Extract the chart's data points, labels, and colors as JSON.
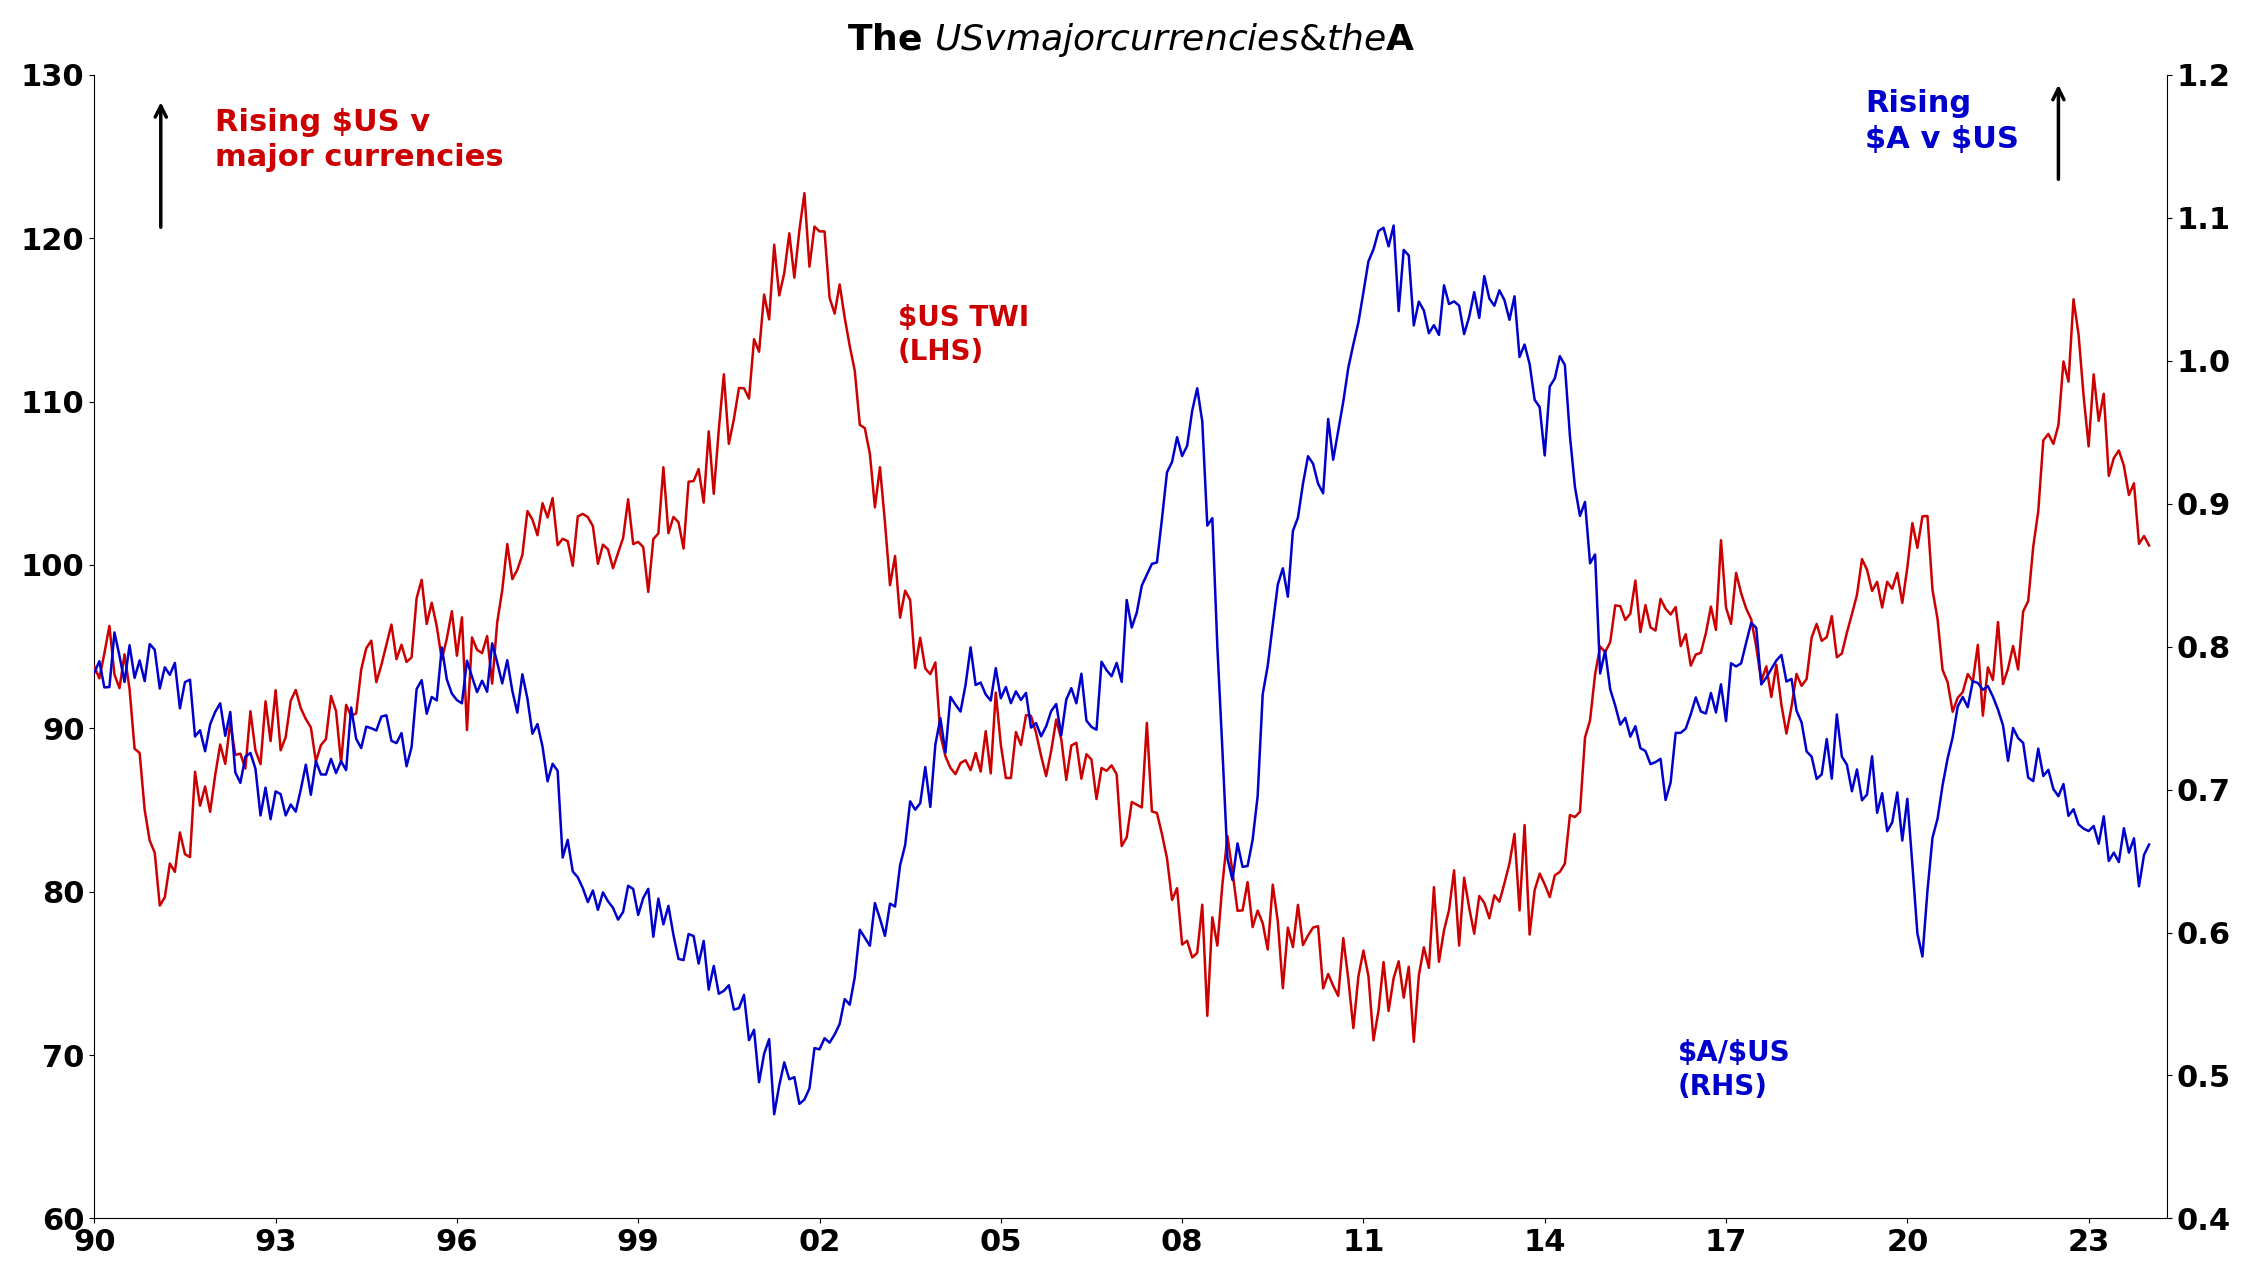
{
  "title": "The $US v major currencies & the $A",
  "title_fontsize": 26,
  "lhs_ylim": [
    60,
    130
  ],
  "rhs_ylim": [
    0.4,
    1.2
  ],
  "lhs_yticks": [
    60,
    70,
    80,
    90,
    100,
    110,
    120,
    130
  ],
  "rhs_yticks": [
    0.4,
    0.5,
    0.6,
    0.7,
    0.8,
    0.9,
    1.0,
    1.1,
    1.2
  ],
  "xticks": [
    1990,
    1993,
    1996,
    1999,
    2002,
    2005,
    2008,
    2011,
    2014,
    2017,
    2020,
    2023
  ],
  "xticklabels": [
    "90",
    "93",
    "96",
    "99",
    "02",
    "05",
    "08",
    "11",
    "14",
    "17",
    "20",
    "23"
  ],
  "twi_color": "#cc0000",
  "aud_color": "#0000cc",
  "arrow_color": "#000000",
  "tick_fontsize": 22,
  "annotation_fontsize": 22,
  "label_fontsize": 20,
  "linewidth": 1.8,
  "background_color": "#ffffff",
  "twi_control_points": [
    [
      1990.0,
      93
    ],
    [
      1990.3,
      94
    ],
    [
      1990.6,
      91
    ],
    [
      1991.0,
      82
    ],
    [
      1991.4,
      83
    ],
    [
      1991.8,
      86
    ],
    [
      1992.2,
      90
    ],
    [
      1992.6,
      88
    ],
    [
      1993.0,
      92
    ],
    [
      1993.4,
      91
    ],
    [
      1993.8,
      90
    ],
    [
      1994.2,
      91
    ],
    [
      1994.6,
      94
    ],
    [
      1995.0,
      95
    ],
    [
      1995.4,
      97
    ],
    [
      1995.8,
      95
    ],
    [
      1996.2,
      94
    ],
    [
      1996.6,
      96
    ],
    [
      1997.0,
      101
    ],
    [
      1997.4,
      103
    ],
    [
      1997.8,
      102
    ],
    [
      1998.2,
      103
    ],
    [
      1998.6,
      101
    ],
    [
      1999.0,
      101
    ],
    [
      1999.4,
      102
    ],
    [
      1999.8,
      103
    ],
    [
      2000.3,
      107
    ],
    [
      2000.7,
      111
    ],
    [
      2001.1,
      116
    ],
    [
      2001.5,
      119
    ],
    [
      2001.8,
      121
    ],
    [
      2002.0,
      120
    ],
    [
      2002.3,
      117
    ],
    [
      2002.6,
      111
    ],
    [
      2003.0,
      103
    ],
    [
      2003.5,
      96
    ],
    [
      2004.0,
      90
    ],
    [
      2004.5,
      87
    ],
    [
      2005.0,
      88
    ],
    [
      2005.5,
      90
    ],
    [
      2006.0,
      89
    ],
    [
      2006.5,
      88
    ],
    [
      2007.0,
      85
    ],
    [
      2007.5,
      84
    ],
    [
      2008.0,
      78
    ],
    [
      2008.4,
      75
    ],
    [
      2008.7,
      82
    ],
    [
      2009.0,
      80
    ],
    [
      2009.5,
      77
    ],
    [
      2010.0,
      78
    ],
    [
      2010.5,
      75
    ],
    [
      2011.0,
      73
    ],
    [
      2011.5,
      74
    ],
    [
      2012.0,
      77
    ],
    [
      2012.5,
      79
    ],
    [
      2013.0,
      79
    ],
    [
      2013.5,
      81
    ],
    [
      2014.0,
      80
    ],
    [
      2014.5,
      84
    ],
    [
      2015.0,
      96
    ],
    [
      2015.5,
      97
    ],
    [
      2016.0,
      96
    ],
    [
      2016.5,
      94
    ],
    [
      2017.0,
      99
    ],
    [
      2017.5,
      95
    ],
    [
      2018.0,
      91
    ],
    [
      2018.5,
      96
    ],
    [
      2019.0,
      97
    ],
    [
      2019.5,
      99
    ],
    [
      2020.0,
      99
    ],
    [
      2020.3,
      103
    ],
    [
      2020.6,
      93
    ],
    [
      2021.0,
      91
    ],
    [
      2021.5,
      93
    ],
    [
      2022.0,
      99
    ],
    [
      2022.4,
      108
    ],
    [
      2022.7,
      114
    ],
    [
      2023.0,
      110
    ],
    [
      2023.5,
      107
    ],
    [
      2024.0,
      101
    ]
  ],
  "aud_control_points": [
    [
      1990.0,
      0.775
    ],
    [
      1990.3,
      0.795
    ],
    [
      1990.7,
      0.775
    ],
    [
      1991.0,
      0.775
    ],
    [
      1991.4,
      0.77
    ],
    [
      1991.8,
      0.755
    ],
    [
      1992.2,
      0.735
    ],
    [
      1992.6,
      0.72
    ],
    [
      1993.0,
      0.69
    ],
    [
      1993.4,
      0.7
    ],
    [
      1993.8,
      0.72
    ],
    [
      1994.2,
      0.73
    ],
    [
      1994.6,
      0.745
    ],
    [
      1995.0,
      0.74
    ],
    [
      1995.4,
      0.755
    ],
    [
      1995.8,
      0.76
    ],
    [
      1996.2,
      0.79
    ],
    [
      1996.6,
      0.78
    ],
    [
      1997.0,
      0.765
    ],
    [
      1997.4,
      0.745
    ],
    [
      1997.8,
      0.66
    ],
    [
      1998.2,
      0.63
    ],
    [
      1998.6,
      0.62
    ],
    [
      1999.0,
      0.625
    ],
    [
      1999.4,
      0.615
    ],
    [
      1999.8,
      0.6
    ],
    [
      2000.3,
      0.575
    ],
    [
      2000.7,
      0.55
    ],
    [
      2001.0,
      0.51
    ],
    [
      2001.5,
      0.5
    ],
    [
      2001.75,
      0.482
    ],
    [
      2002.0,
      0.515
    ],
    [
      2002.5,
      0.555
    ],
    [
      2003.0,
      0.615
    ],
    [
      2003.5,
      0.67
    ],
    [
      2004.0,
      0.74
    ],
    [
      2004.5,
      0.77
    ],
    [
      2005.0,
      0.775
    ],
    [
      2005.5,
      0.75
    ],
    [
      2006.0,
      0.75
    ],
    [
      2006.5,
      0.76
    ],
    [
      2007.0,
      0.79
    ],
    [
      2007.5,
      0.855
    ],
    [
      2008.0,
      0.94
    ],
    [
      2008.25,
      0.98
    ],
    [
      2008.5,
      0.87
    ],
    [
      2008.75,
      0.665
    ],
    [
      2009.0,
      0.645
    ],
    [
      2009.25,
      0.7
    ],
    [
      2009.5,
      0.835
    ],
    [
      2010.0,
      0.905
    ],
    [
      2010.5,
      0.93
    ],
    [
      2011.0,
      1.055
    ],
    [
      2011.25,
      1.1
    ],
    [
      2011.5,
      1.075
    ],
    [
      2012.0,
      1.04
    ],
    [
      2012.5,
      1.025
    ],
    [
      2013.0,
      1.05
    ],
    [
      2013.5,
      1.03
    ],
    [
      2014.0,
      0.95
    ],
    [
      2014.25,
      1.01
    ],
    [
      2014.5,
      0.93
    ],
    [
      2014.75,
      0.875
    ],
    [
      2015.0,
      0.775
    ],
    [
      2015.5,
      0.73
    ],
    [
      2016.0,
      0.715
    ],
    [
      2016.5,
      0.76
    ],
    [
      2017.0,
      0.77
    ],
    [
      2017.5,
      0.8
    ],
    [
      2018.0,
      0.785
    ],
    [
      2018.5,
      0.725
    ],
    [
      2019.0,
      0.715
    ],
    [
      2019.5,
      0.685
    ],
    [
      2020.0,
      0.67
    ],
    [
      2020.25,
      0.575
    ],
    [
      2020.5,
      0.7
    ],
    [
      2021.0,
      0.775
    ],
    [
      2021.5,
      0.75
    ],
    [
      2022.0,
      0.725
    ],
    [
      2022.5,
      0.695
    ],
    [
      2023.0,
      0.675
    ],
    [
      2023.5,
      0.655
    ],
    [
      2024.0,
      0.65
    ]
  ]
}
